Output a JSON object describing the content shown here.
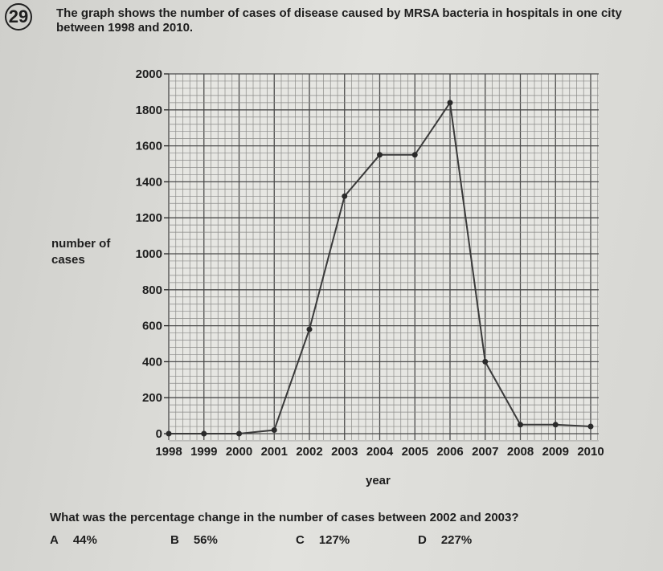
{
  "question": {
    "number": "29",
    "text": "The graph shows the number of cases of disease caused by MRSA bacteria in hospitals in one city between 1998 and 2010.",
    "prompt": "What was the percentage change in the number of cases between 2002 and 2003?",
    "options": [
      {
        "letter": "A",
        "value": "44%"
      },
      {
        "letter": "B",
        "value": "56%"
      },
      {
        "letter": "C",
        "value": "127%"
      },
      {
        "letter": "D",
        "value": "227%"
      }
    ]
  },
  "chart_data": {
    "type": "line",
    "title": "",
    "xlabel": "year",
    "ylabel": "number of cases",
    "x": [
      1998,
      1999,
      2000,
      2001,
      2002,
      2003,
      2004,
      2005,
      2006,
      2007,
      2008,
      2009,
      2010
    ],
    "values": [
      0,
      0,
      0,
      20,
      580,
      1320,
      1550,
      1550,
      1840,
      400,
      50,
      50,
      40
    ],
    "x_tick_labels": [
      "1998",
      "1999",
      "2000",
      "2001",
      "2002",
      "2003",
      "2004",
      "2005",
      "2006",
      "2007",
      "2008",
      "2009",
      "2010"
    ],
    "y_tick_labels": [
      "0",
      "200",
      "400",
      "600",
      "800",
      "1000",
      "1200",
      "1400",
      "1600",
      "1800",
      "2000"
    ],
    "ylim": [
      0,
      2000
    ],
    "xlim": [
      1998,
      2010
    ],
    "grid": true,
    "line_color": "#3a3a3a"
  }
}
